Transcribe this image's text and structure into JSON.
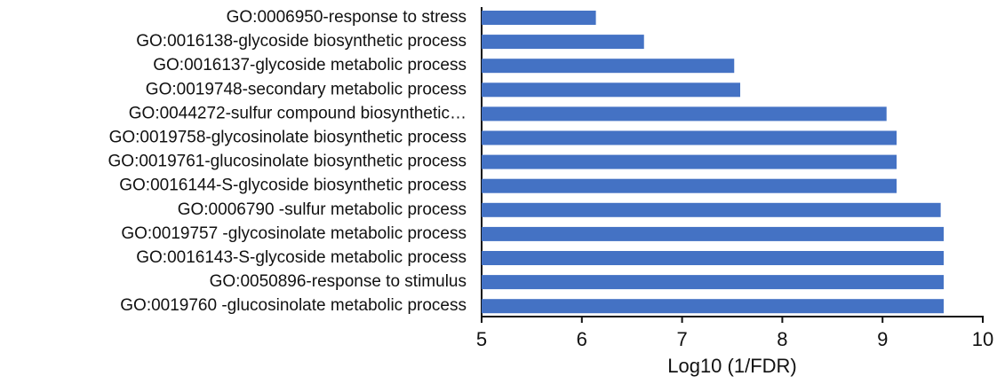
{
  "chart_data": {
    "type": "hbar",
    "x_label": "Log10 (1/FDR)",
    "categories": [
      "GO:0006950-response to stress",
      "GO:0016138-glycoside biosynthetic process",
      "GO:0016137-glycoside metabolic process",
      "GO:0019748-secondary metabolic process",
      "GO:0044272-sulfur compound biosynthetic…",
      "GO:0019758-glycosinolate biosynthetic process",
      "GO:0019761-glucosinolate biosynthetic process",
      "GO:0016144-S-glycoside biosynthetic process",
      "GO:0006790 -sulfur metabolic process",
      "GO:0019757 -glycosinolate metabolic process",
      "GO:0016143-S-glycoside metabolic process",
      "GO:0050896-response to stimulus",
      "GO:0019760 -glucosinolate metabolic process"
    ],
    "values": [
      6.14,
      6.62,
      7.52,
      7.58,
      9.04,
      9.14,
      9.14,
      9.14,
      9.58,
      9.61,
      9.61,
      9.61,
      9.61
    ],
    "color": "#4472c4",
    "xlim": [
      5,
      10
    ],
    "xticks": [
      5,
      6,
      7,
      8,
      9,
      10
    ]
  }
}
